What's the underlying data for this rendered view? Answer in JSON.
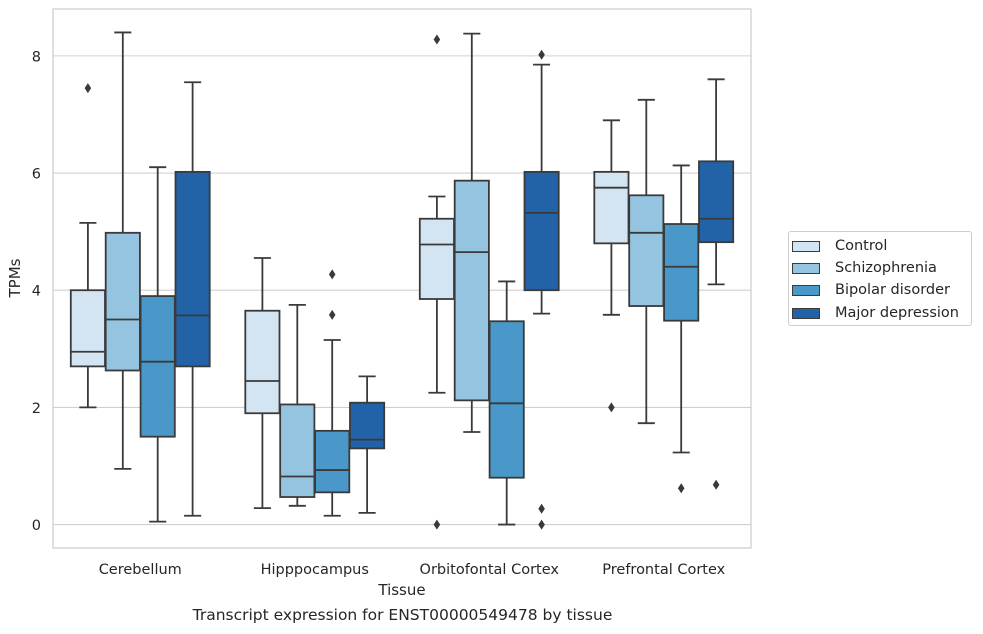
{
  "chart_data": {
    "type": "box",
    "title": "",
    "caption": "Transcript expression for ENST00000549478 by tissue",
    "xlabel": "Tissue",
    "ylabel": "TPMs",
    "ylim": [
      -0.4,
      8.8
    ],
    "yticks": [
      0,
      2,
      4,
      6,
      8
    ],
    "grid": "horizontal",
    "legend_position": "right",
    "categories": [
      "Cerebellum",
      "Hipppocampus",
      "Orbitofontal Cortex",
      "Prefrontal Cortex"
    ],
    "series": [
      {
        "name": "Control",
        "color": "#d3e4f3",
        "boxes": [
          {
            "whislo": 2.0,
            "q1": 2.7,
            "med": 2.95,
            "q3": 4.0,
            "whishi": 5.15,
            "fliers": [
              7.45
            ]
          },
          {
            "whislo": 0.28,
            "q1": 1.9,
            "med": 2.45,
            "q3": 3.65,
            "whishi": 4.55,
            "fliers": []
          },
          {
            "whislo": 2.25,
            "q1": 3.85,
            "med": 4.78,
            "q3": 5.22,
            "whishi": 5.6,
            "fliers": [
              8.28,
              0.0
            ]
          },
          {
            "whislo": 3.58,
            "q1": 4.8,
            "med": 5.75,
            "q3": 6.02,
            "whishi": 6.9,
            "fliers": [
              2.0
            ]
          }
        ]
      },
      {
        "name": "Schizophrenia",
        "color": "#94c4df",
        "boxes": [
          {
            "whislo": 0.95,
            "q1": 2.63,
            "med": 3.5,
            "q3": 4.98,
            "whishi": 8.4,
            "fliers": []
          },
          {
            "whislo": 0.32,
            "q1": 0.47,
            "med": 0.82,
            "q3": 2.05,
            "whishi": 3.75,
            "fliers": []
          },
          {
            "whislo": 1.58,
            "q1": 2.12,
            "med": 4.65,
            "q3": 5.87,
            "whishi": 8.38,
            "fliers": []
          },
          {
            "whislo": 1.73,
            "q1": 3.73,
            "med": 4.98,
            "q3": 5.62,
            "whishi": 7.25,
            "fliers": []
          }
        ]
      },
      {
        "name": "Bipolar disorder",
        "color": "#4a98c9",
        "boxes": [
          {
            "whislo": 0.05,
            "q1": 1.5,
            "med": 2.78,
            "q3": 3.9,
            "whishi": 6.1,
            "fliers": []
          },
          {
            "whislo": 0.15,
            "q1": 0.55,
            "med": 0.93,
            "q3": 1.6,
            "whishi": 3.15,
            "fliers": [
              3.58,
              4.27
            ]
          },
          {
            "whislo": 0.0,
            "q1": 0.8,
            "med": 2.07,
            "q3": 3.47,
            "whishi": 4.15,
            "fliers": []
          },
          {
            "whislo": 1.23,
            "q1": 3.48,
            "med": 4.4,
            "q3": 5.13,
            "whishi": 6.13,
            "fliers": [
              0.62
            ]
          }
        ]
      },
      {
        "name": "Major depression",
        "color": "#2263a8",
        "boxes": [
          {
            "whislo": 0.15,
            "q1": 2.7,
            "med": 3.57,
            "q3": 6.02,
            "whishi": 7.55,
            "fliers": []
          },
          {
            "whislo": 0.2,
            "q1": 1.3,
            "med": 1.45,
            "q3": 2.08,
            "whishi": 2.53,
            "fliers": []
          },
          {
            "whislo": 3.6,
            "q1": 4.0,
            "med": 5.32,
            "q3": 6.02,
            "whishi": 7.85,
            "fliers": [
              8.02,
              0.27,
              0.0
            ]
          },
          {
            "whislo": 4.1,
            "q1": 4.82,
            "med": 5.22,
            "q3": 6.2,
            "whishi": 7.6,
            "fliers": [
              0.68
            ]
          }
        ]
      }
    ]
  }
}
